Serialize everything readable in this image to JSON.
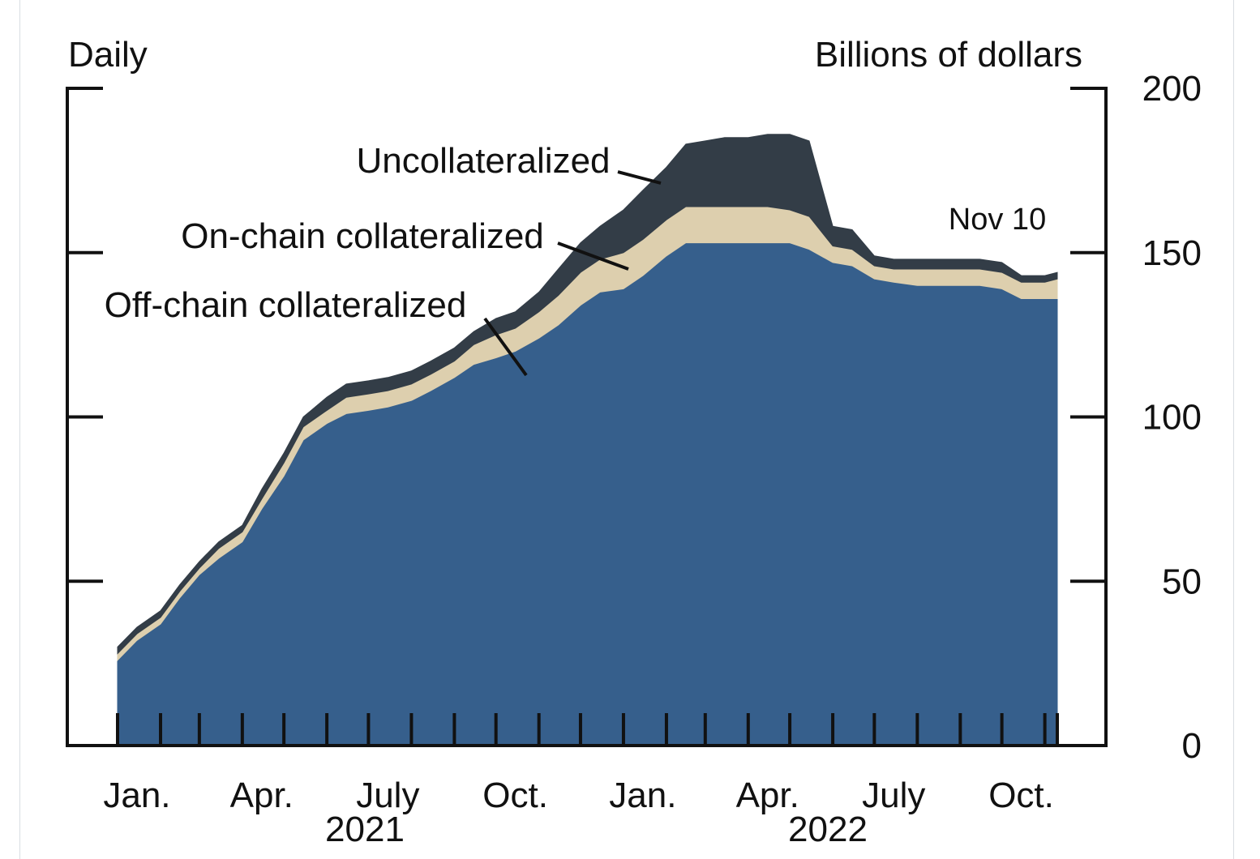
{
  "chart_data": {
    "type": "area",
    "stacked": true,
    "frequency_label": "Daily",
    "ylabel": "Billions of dollars",
    "ylim": [
      0,
      200
    ],
    "yticks": [
      0,
      50,
      100,
      150,
      200
    ],
    "x_tick_labels": [
      {
        "label": "Jan.",
        "month": 1,
        "year": 2021
      },
      {
        "label": "Apr.",
        "month": 4,
        "year": 2021
      },
      {
        "label": "July",
        "month": 7,
        "year": 2021
      },
      {
        "label": "Oct.",
        "month": 10,
        "year": 2021
      },
      {
        "label": "Jan.",
        "month": 1,
        "year": 2022
      },
      {
        "label": "Apr.",
        "month": 4,
        "year": 2022
      },
      {
        "label": "July",
        "month": 7,
        "year": 2022
      },
      {
        "label": "Oct.",
        "month": 10,
        "year": 2022
      }
    ],
    "year_labels": [
      "2021",
      "2022"
    ],
    "x": [
      "2021-01-01",
      "2021-01-15",
      "2021-02-01",
      "2021-02-15",
      "2021-03-01",
      "2021-03-15",
      "2021-04-01",
      "2021-04-15",
      "2021-05-01",
      "2021-05-15",
      "2021-06-01",
      "2021-06-15",
      "2021-07-01",
      "2021-07-15",
      "2021-08-01",
      "2021-08-15",
      "2021-09-01",
      "2021-09-15",
      "2021-10-01",
      "2021-10-15",
      "2021-11-01",
      "2021-11-15",
      "2021-12-01",
      "2021-12-15",
      "2022-01-01",
      "2022-01-15",
      "2022-02-01",
      "2022-02-15",
      "2022-03-01",
      "2022-03-15",
      "2022-04-01",
      "2022-04-15",
      "2022-05-01",
      "2022-05-15",
      "2022-06-01",
      "2022-06-15",
      "2022-07-01",
      "2022-07-15",
      "2022-08-01",
      "2022-08-15",
      "2022-09-01",
      "2022-09-15",
      "2022-10-01",
      "2022-10-15",
      "2022-11-01",
      "2022-11-10"
    ],
    "series": [
      {
        "name": "Off-chain collateralized",
        "color": "#365f8c",
        "values": [
          26,
          32,
          37,
          45,
          52,
          57,
          62,
          72,
          82,
          93,
          98,
          101,
          102,
          103,
          105,
          108,
          112,
          116,
          118,
          120,
          124,
          128,
          134,
          138,
          139,
          143,
          149,
          153,
          153,
          153,
          153,
          153,
          153,
          151,
          147,
          146,
          142,
          141,
          140,
          140,
          140,
          140,
          139,
          136,
          136,
          136
        ]
      },
      {
        "name": "On-chain collateralized",
        "color": "#ddcfae",
        "values": [
          2,
          2,
          2,
          2,
          2,
          3,
          3,
          3,
          4,
          4,
          4,
          5,
          5,
          5,
          5,
          5,
          5,
          6,
          7,
          7,
          8,
          9,
          10,
          10,
          11,
          11,
          11,
          11,
          11,
          11,
          11,
          11,
          10,
          10,
          5,
          5,
          4,
          4,
          5,
          5,
          5,
          5,
          5,
          5,
          5,
          6
        ]
      },
      {
        "name": "Uncollateralized",
        "color": "#333d47",
        "values": [
          2,
          2,
          2,
          2,
          2,
          2,
          2,
          3,
          3,
          3,
          4,
          4,
          4,
          4,
          4,
          4,
          4,
          4,
          5,
          5,
          6,
          8,
          9,
          10,
          13,
          15,
          16,
          19,
          20,
          21,
          21,
          22,
          23,
          23,
          6,
          6,
          3,
          3,
          3,
          3,
          3,
          3,
          3,
          2,
          2,
          2
        ]
      }
    ],
    "annotations": [
      {
        "text": "Uncollateralized",
        "target": "Uncollateralized"
      },
      {
        "text": "On-chain collateralized",
        "target": "On-chain collateralized"
      },
      {
        "text": "Off-chain collateralized",
        "target": "Off-chain collateralized"
      },
      {
        "text": "Nov 10"
      }
    ],
    "grid": false
  }
}
